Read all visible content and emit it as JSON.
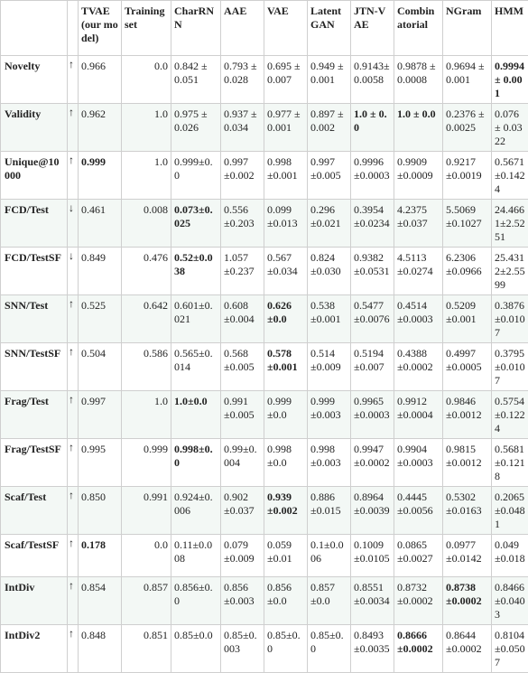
{
  "table": {
    "headers": [
      "",
      "",
      "TVAE (our model)",
      "Training set",
      "CharRNN",
      "AAE",
      "VAE",
      "Latent GAN",
      "JTN-VAE",
      "Combinatorial",
      "NGram",
      "HMM"
    ],
    "rows": [
      {
        "label": "Novelty",
        "arrow": "↑",
        "cells": [
          "0.966",
          "0.0",
          "0.842 ± 0.051",
          "0.793 ± 0.028",
          "0.695 ± 0.007",
          "0.949 ± 0.001",
          "0.9143± 0.0058",
          "0.9878 ± 0.0008",
          "0.9694 ± 0.001",
          "0.9994 ± 0.001"
        ],
        "bold": [
          9
        ]
      },
      {
        "label": "Validity",
        "arrow": "↑",
        "cells": [
          "0.962",
          "1.0",
          "0.975 ± 0.026",
          "0.937 ± 0.034",
          "0.977 ± 0.001",
          "0.897 ± 0.002",
          "1.0 ± 0.0",
          "1.0 ± 0.0",
          "0.2376 ± 0.0025",
          "0.076 ± 0.0322"
        ],
        "bold": [
          6,
          7
        ]
      },
      {
        "label": "Unique@10000",
        "arrow": "↑",
        "cells": [
          "0.999",
          "1.0",
          "0.999±0.0",
          "0.997±0.002",
          "0.998±0.001",
          "0.997±0.005",
          "0.9996±0.0003",
          "0.9909±0.0009",
          "0.9217±0.0019",
          "0.5671±0.1424"
        ],
        "bold": [
          0
        ]
      },
      {
        "label": "FCD/Test",
        "arrow": "↓",
        "cells": [
          "0.461",
          "0.008",
          "0.073±0.025",
          "0.556±0.203",
          "0.099±0.013",
          "0.296±0.021",
          "0.3954±0.0234",
          "4.2375±0.037",
          "5.5069±0.1027",
          "24.4661±2.5251"
        ],
        "bold": [
          2
        ]
      },
      {
        "label": "FCD/TestSF",
        "arrow": "↓",
        "cells": [
          "0.849",
          "0.476",
          "0.52±0.038",
          "1.057±0.237",
          "0.567±0.034",
          "0.824±0.030",
          "0.9382±0.0531",
          "4.5113±0.0274",
          "6.2306±0.0966",
          "25.4312±2.5599"
        ],
        "bold": [
          2
        ]
      },
      {
        "label": "SNN/Test",
        "arrow": "↑",
        "cells": [
          "0.525",
          "0.642",
          "0.601±0.021",
          "0.608±0.004",
          "0.626±0.0",
          "0.538±0.001",
          "0.5477±0.0076",
          "0.4514±0.0003",
          "0.5209±0.001",
          "0.3876±0.0107"
        ],
        "bold": [
          4
        ]
      },
      {
        "label": "SNN/TestSF",
        "arrow": "↑",
        "cells": [
          "0.504",
          "0.586",
          "0.565±0.014",
          "0.568±0.005",
          "0.578±0.001",
          "0.514±0.009",
          "0.5194±0.007",
          "0.4388±0.0002",
          "0.4997±0.0005",
          "0.3795±0.0107"
        ],
        "bold": [
          4
        ]
      },
      {
        "label": "Frag/Test",
        "arrow": "↑",
        "cells": [
          "0.997",
          "1.0",
          "1.0±0.0",
          "0.991±0.005",
          "0.999±0.0",
          "0.999±0.003",
          "0.9965±0.0003",
          "0.9912±0.0004",
          "0.9846±0.0012",
          "0.5754±0.1224"
        ],
        "bold": [
          2
        ]
      },
      {
        "label": "Frag/TestSF",
        "arrow": "↑",
        "cells": [
          "0.995",
          "0.999",
          "0.998±0.0",
          "0.99±0.004",
          "0.998±0.0",
          "0.998±0.003",
          "0.9947±0.0002",
          "0.9904±0.0003",
          "0.9815±0.0012",
          "0.5681±0.1218"
        ],
        "bold": [
          2
        ]
      },
      {
        "label": "Scaf/Test",
        "arrow": "↑",
        "cells": [
          "0.850",
          "0.991",
          "0.924±0.006",
          "0.902±0.037",
          "0.939±0.002",
          "0.886±0.015",
          "0.8964±0.0039",
          "0.4445±0.0056",
          "0.5302±0.0163",
          "0.2065±0.0481"
        ],
        "bold": [
          4
        ]
      },
      {
        "label": "Scaf/TestSF",
        "arrow": "↑",
        "cells": [
          "0.178",
          "0.0",
          "0.11±0.008",
          "0.079±0.009",
          "0.059±0.01",
          "0.1±0.006",
          "0.1009±0.0105",
          "0.0865±0.0027",
          "0.0977±0.0142",
          "0.049±0.018"
        ],
        "bold": [
          0
        ]
      },
      {
        "label": "IntDiv",
        "arrow": "↑",
        "cells": [
          "0.854",
          "0.857",
          "0.856±0.0",
          "0.856±0.003",
          "0.856±0.0",
          "0.857±0.0",
          "0.8551±0.0034",
          "0.8732±0.0002",
          "0.8738±0.0002",
          "0.8466±0.0403"
        ],
        "bold": [
          8
        ]
      },
      {
        "label": "IntDiv2",
        "arrow": "↑",
        "cells": [
          "0.848",
          "0.851",
          "0.85±0.0",
          "0.85±0.003",
          "0.85±0.0",
          "0.85±0.0",
          "0.8493±0.0035",
          "0.8666±0.0002",
          "0.8644±0.0002",
          "0.8104±0.0507"
        ],
        "bold": [
          7
        ]
      }
    ]
  }
}
